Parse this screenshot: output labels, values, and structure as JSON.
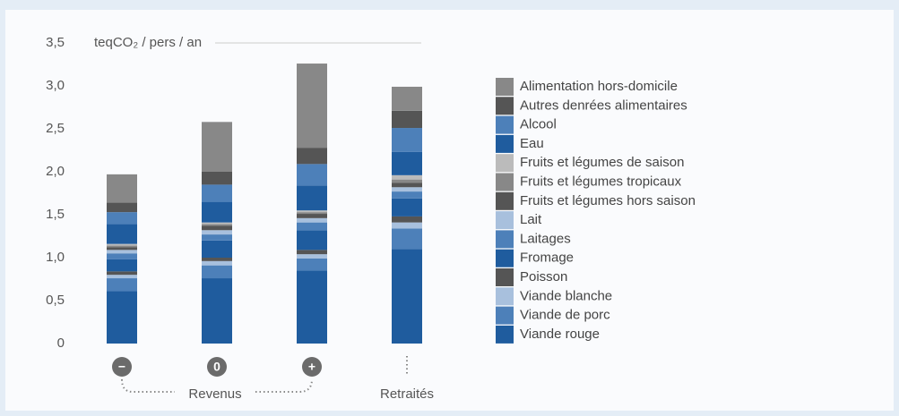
{
  "chart_data": {
    "type": "stacked_bar",
    "y_label": "teqCO₂ / pers / an",
    "categories": [
      "−",
      "0",
      "+",
      "Retraités"
    ],
    "group_label": "Revenus",
    "ylim": [
      0,
      3.5
    ],
    "yticks": [
      0,
      {
        "value": 0.5,
        "label": "0,5"
      },
      {
        "value": 1,
        "label": "1,0"
      },
      {
        "value": 1.5,
        "label": "1,5"
      },
      {
        "value": 2,
        "label": "2,0"
      },
      {
        "value": 2.5,
        "label": "2,5"
      },
      {
        "value": 3,
        "label": "3,0"
      },
      {
        "value": 3.5,
        "label": "3,5"
      }
    ],
    "series": [
      {
        "name": "Viande rouge",
        "color": "#1f5c9e",
        "values": [
          0.61,
          0.76,
          0.85,
          1.1
        ]
      },
      {
        "name": "Viande de porc",
        "color": "#4d80b9",
        "values": [
          0.15,
          0.15,
          0.14,
          0.24
        ]
      },
      {
        "name": "Viande blanche",
        "color": "#a8c0dd",
        "values": [
          0.04,
          0.05,
          0.05,
          0.07
        ]
      },
      {
        "name": "Poisson",
        "color": "#555555",
        "values": [
          0.04,
          0.04,
          0.05,
          0.07
        ]
      },
      {
        "name": "Fromage",
        "color": "#1f5c9e",
        "values": [
          0.14,
          0.2,
          0.23,
          0.21
        ]
      },
      {
        "name": "Laitages",
        "color": "#4d80b9",
        "values": [
          0.07,
          0.07,
          0.09,
          0.08
        ]
      },
      {
        "name": "Lait",
        "color": "#a8c0dd",
        "values": [
          0.04,
          0.05,
          0.05,
          0.05
        ]
      },
      {
        "name": "Fruits et légumes hors saison",
        "color": "#555555",
        "values": [
          0.03,
          0.05,
          0.05,
          0.05
        ]
      },
      {
        "name": "Fruits et légumes tropicaux",
        "color": "#888888",
        "values": [
          0.02,
          0.02,
          0.02,
          0.04
        ]
      },
      {
        "name": "Fruits et légumes de saison",
        "color": "#bbbbbb",
        "values": [
          0.02,
          0.02,
          0.02,
          0.05
        ]
      },
      {
        "name": "Eau",
        "color": "#1f5c9e",
        "values": [
          0.23,
          0.24,
          0.29,
          0.27
        ]
      },
      {
        "name": "Alcool",
        "color": "#4d80b9",
        "values": [
          0.14,
          0.2,
          0.25,
          0.28
        ]
      },
      {
        "name": "Autres denrées alimentaires",
        "color": "#555555",
        "values": [
          0.11,
          0.15,
          0.19,
          0.2
        ]
      },
      {
        "name": "Alimentation hors-domicile",
        "color": "#888888",
        "values": [
          0.33,
          0.58,
          0.98,
          0.28
        ]
      }
    ]
  }
}
